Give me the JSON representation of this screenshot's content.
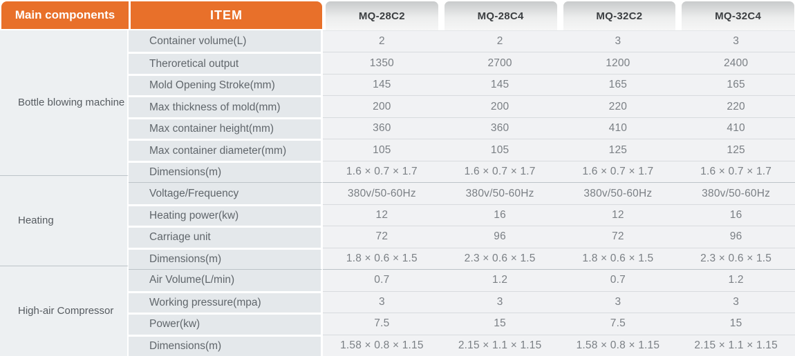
{
  "header": {
    "main_components_label": "Main components",
    "item_label": "ITEM",
    "models": [
      "MQ-28C2",
      "MQ-28C4",
      "MQ-32C2",
      "MQ-32C4"
    ]
  },
  "colors": {
    "accent_orange": "#E8702A",
    "header_text": "#FFFFFF",
    "model_tab_gradient_top": "#C8CACB",
    "model_tab_gradient_bottom": "#F6F6F6",
    "model_tab_text": "#3B3E41",
    "left_column_bg": "#EDF0F2",
    "item_column_bg": "#E4E8EB",
    "data_cell_bg": "#F1F2F4"
  },
  "sections": [
    {
      "name": "Bottle blowing machine",
      "rows": [
        {
          "item": "Container volume(L)",
          "values": [
            "2",
            "2",
            "3",
            "3"
          ]
        },
        {
          "item": "Theroretical output",
          "values": [
            "1350",
            "2700",
            "1200",
            "2400"
          ]
        },
        {
          "item": "Mold Opening Stroke(mm)",
          "values": [
            "145",
            "145",
            "165",
            "165"
          ]
        },
        {
          "item": "Max thickness of mold(mm)",
          "values": [
            "200",
            "200",
            "220",
            "220"
          ]
        },
        {
          "item": "Max container height(mm)",
          "values": [
            "360",
            "360",
            "410",
            "410"
          ]
        },
        {
          "item": "Max container diameter(mm)",
          "values": [
            "105",
            "105",
            "125",
            "125"
          ]
        },
        {
          "item": "Dimensions(m)",
          "values": [
            "1.6 × 0.7 × 1.7",
            "1.6 × 0.7 × 1.7",
            "1.6 × 0.7 × 1.7",
            "1.6 × 0.7 × 1.7"
          ]
        }
      ]
    },
    {
      "name": "Heating",
      "rows": [
        {
          "item": "Voltage/Frequency",
          "values": [
            "380v/50-60Hz",
            "380v/50-60Hz",
            "380v/50-60Hz",
            "380v/50-60Hz"
          ]
        },
        {
          "item": "Heating power(kw)",
          "values": [
            "12",
            "16",
            "12",
            "16"
          ]
        },
        {
          "item": "Carriage unit",
          "values": [
            "72",
            "96",
            "72",
            "96"
          ]
        },
        {
          "item": "Dimensions(m)",
          "values": [
            "1.8 × 0.6 × 1.5",
            "2.3 × 0.6 × 1.5",
            "1.8 × 0.6 × 1.5",
            "2.3 × 0.6 × 1.5"
          ]
        }
      ]
    },
    {
      "name": "High-air Compressor",
      "rows": [
        {
          "item": "Air Volume(L/min)",
          "values": [
            "0.7",
            "1.2",
            "0.7",
            "1.2"
          ]
        },
        {
          "item": "Working pressure(mpa)",
          "values": [
            "3",
            "3",
            "3",
            "3"
          ]
        },
        {
          "item": "Power(kw)",
          "values": [
            "7.5",
            "15",
            "7.5",
            "15"
          ]
        },
        {
          "item": "Dimensions(m)",
          "values": [
            "1.58 × 0.8 × 1.15",
            "2.15 × 1.1 × 1.15",
            "1.58 × 0.8 × 1.15",
            "2.15 × 1.1 × 1.15"
          ]
        }
      ]
    }
  ]
}
